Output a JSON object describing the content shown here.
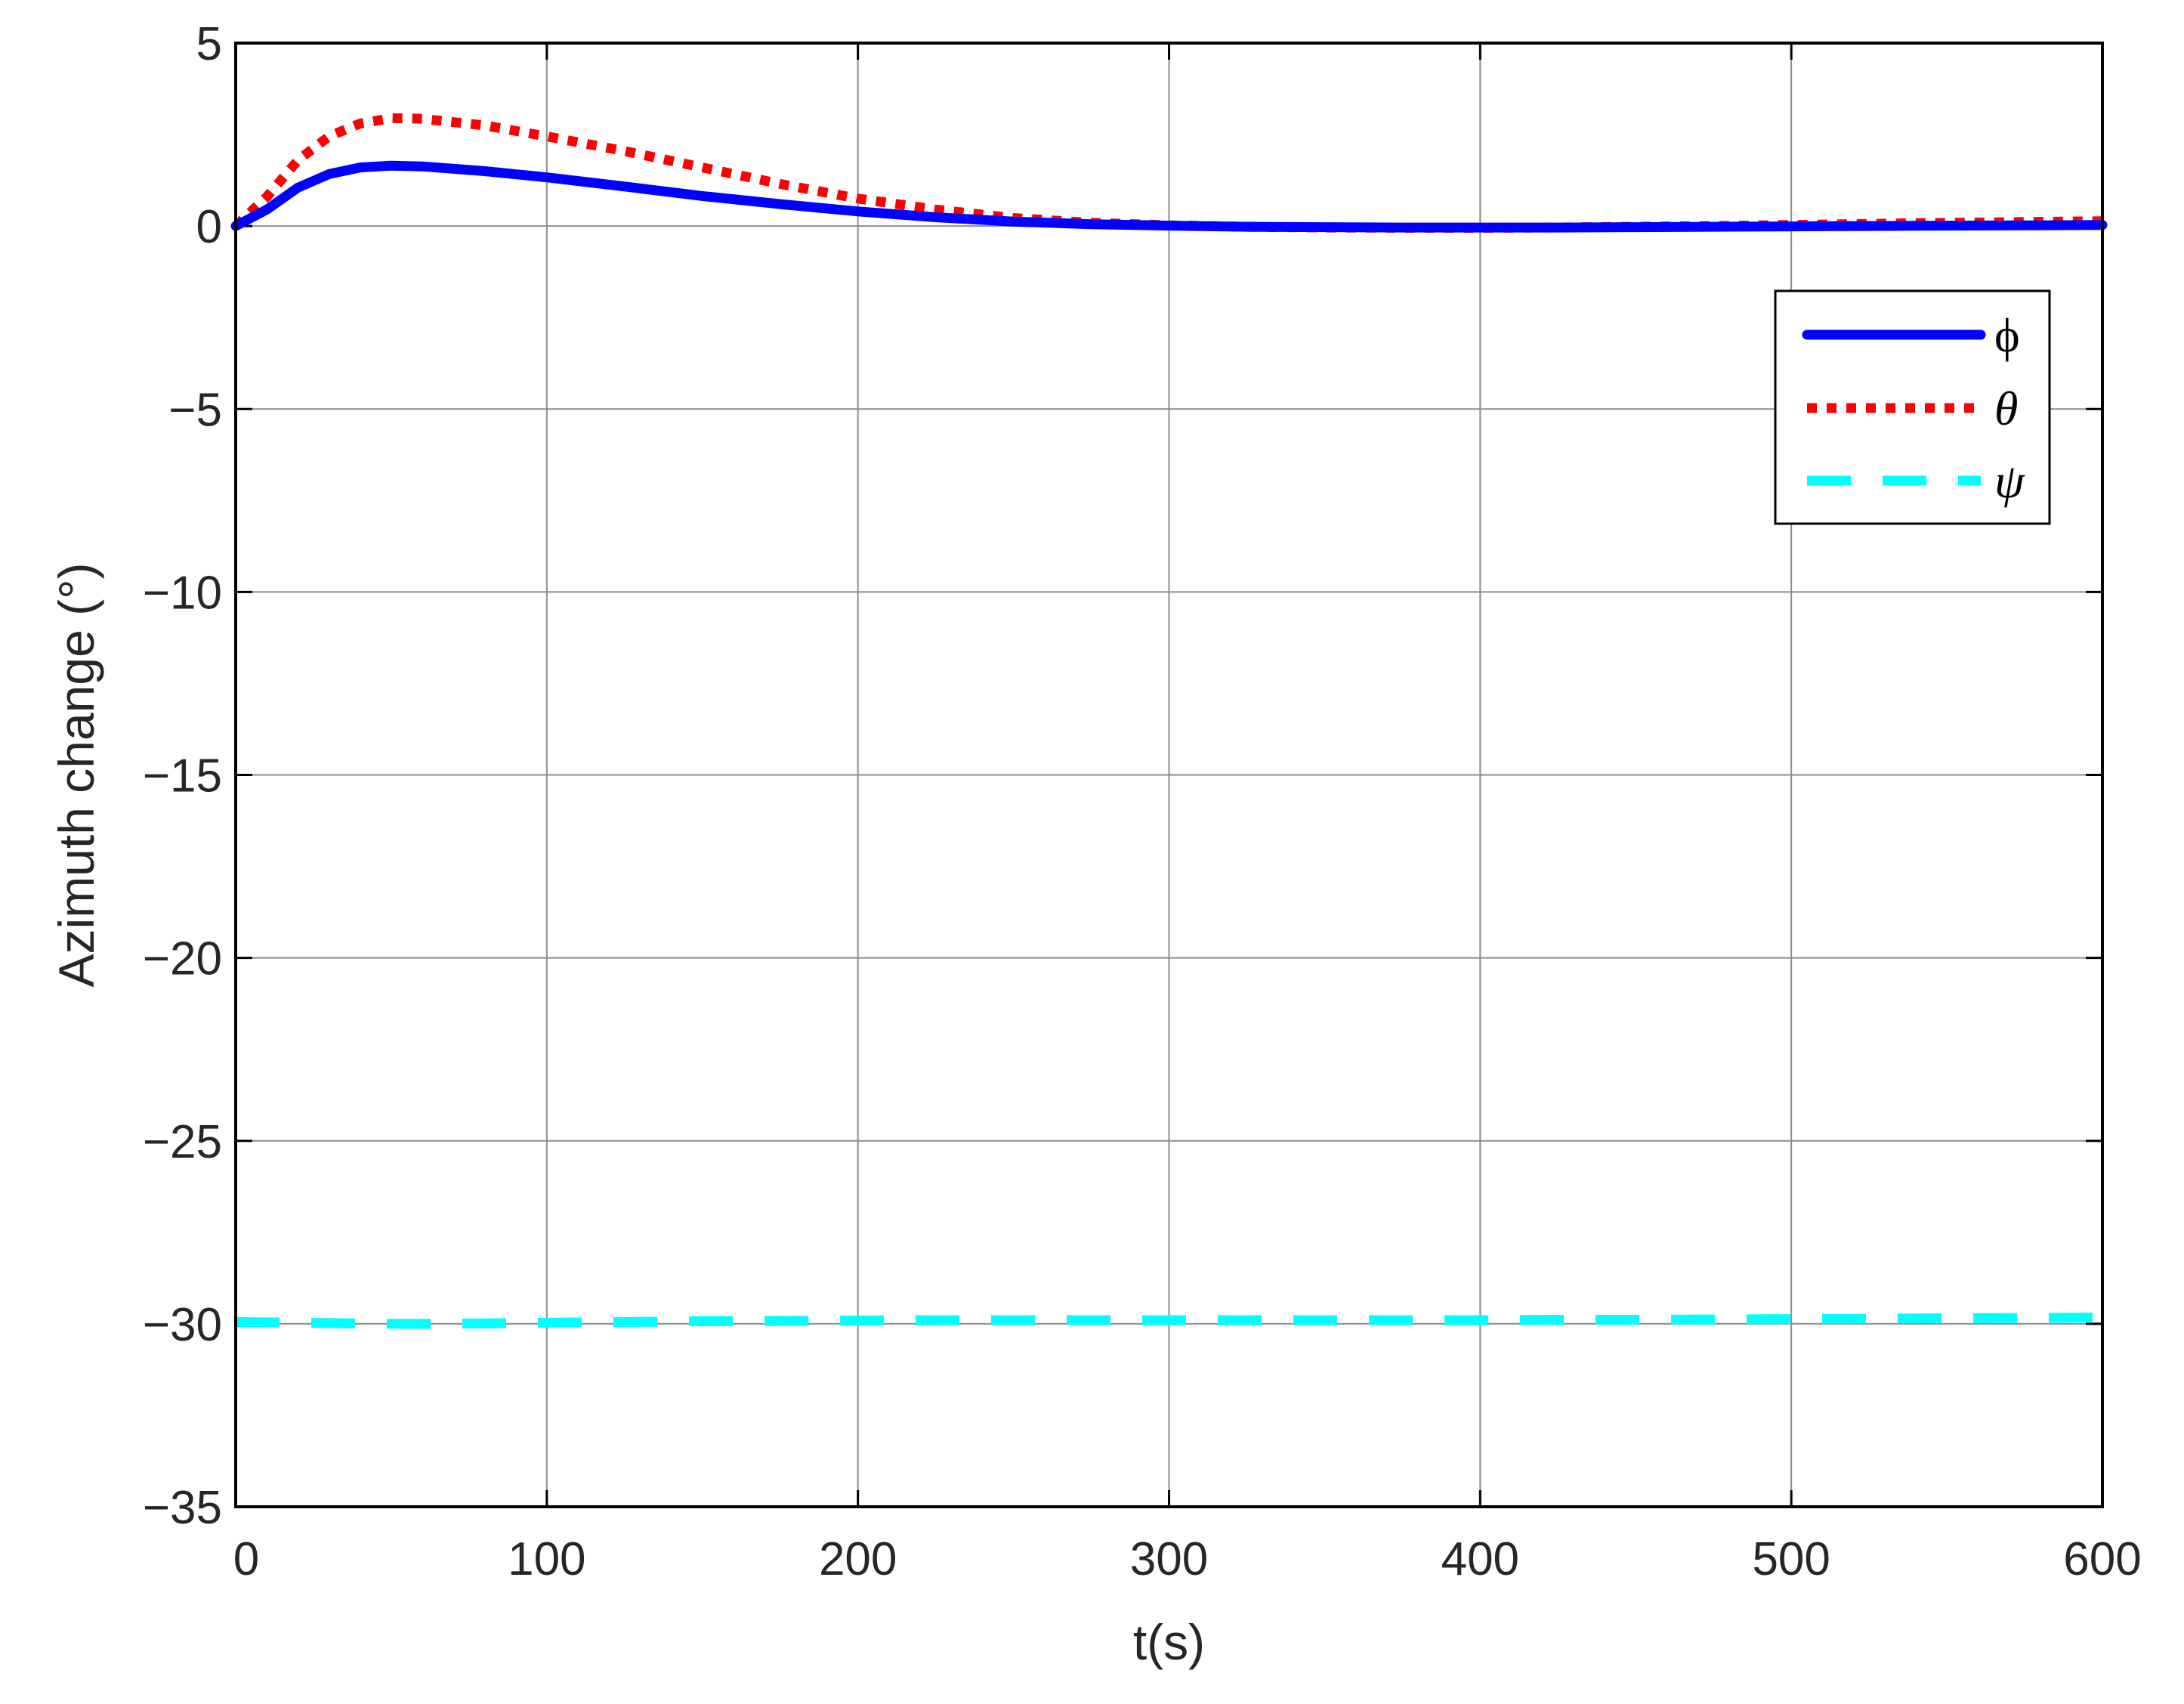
{
  "chart_data": {
    "type": "line",
    "xlabel": "t(s)",
    "ylabel": "Azimuth change (°)",
    "xlim": [
      0,
      600
    ],
    "ylim": [
      -35,
      5
    ],
    "x_ticks": [
      0,
      100,
      200,
      300,
      400,
      500,
      600
    ],
    "y_ticks": [
      5,
      0,
      -5,
      -10,
      -15,
      -20,
      -25,
      -30,
      -35
    ],
    "x_tick_labels": [
      "0",
      "100",
      "200",
      "300",
      "400",
      "500",
      "600"
    ],
    "y_tick_labels": [
      "5",
      "0",
      "−5",
      "−10",
      "−15",
      "−20",
      "−25",
      "−30",
      "−35"
    ],
    "grid": true,
    "legend_position": "upper-right",
    "x": [
      0,
      10,
      20,
      30,
      40,
      50,
      60,
      80,
      100,
      125,
      150,
      175,
      200,
      225,
      250,
      275,
      300,
      325,
      350,
      375,
      400,
      425,
      450,
      475,
      500,
      525,
      550,
      575,
      600
    ],
    "series": [
      {
        "name": "ϕ",
        "color": "#0000ff",
        "style": "solid",
        "values": [
          0,
          0.45,
          1.05,
          1.42,
          1.6,
          1.65,
          1.63,
          1.5,
          1.33,
          1.08,
          0.82,
          0.6,
          0.4,
          0.24,
          0.12,
          0.05,
          0.01,
          -0.02,
          -0.03,
          -0.04,
          -0.04,
          -0.04,
          -0.03,
          -0.02,
          -0.01,
          0.0,
          0.01,
          0.02,
          0.03
        ]
      },
      {
        "name": "θ",
        "color": "#ff0000",
        "style": "dotted",
        "values": [
          0,
          0.8,
          1.8,
          2.45,
          2.8,
          2.95,
          2.93,
          2.75,
          2.45,
          2.05,
          1.6,
          1.15,
          0.75,
          0.45,
          0.22,
          0.09,
          0.02,
          -0.02,
          -0.04,
          -0.05,
          -0.05,
          -0.04,
          -0.02,
          0.0,
          0.03,
          0.06,
          0.09,
          0.11,
          0.13
        ]
      },
      {
        "name": "ψ",
        "color": "#00ffff",
        "style": "dashed",
        "values": [
          -29.95,
          -29.96,
          -29.97,
          -29.98,
          -29.99,
          -30.0,
          -30.0,
          -29.99,
          -29.97,
          -29.95,
          -29.93,
          -29.92,
          -29.91,
          -29.9,
          -29.9,
          -29.9,
          -29.9,
          -29.9,
          -29.9,
          -29.9,
          -29.9,
          -29.89,
          -29.89,
          -29.88,
          -29.87,
          -29.86,
          -29.85,
          -29.84,
          -29.83
        ]
      }
    ]
  }
}
